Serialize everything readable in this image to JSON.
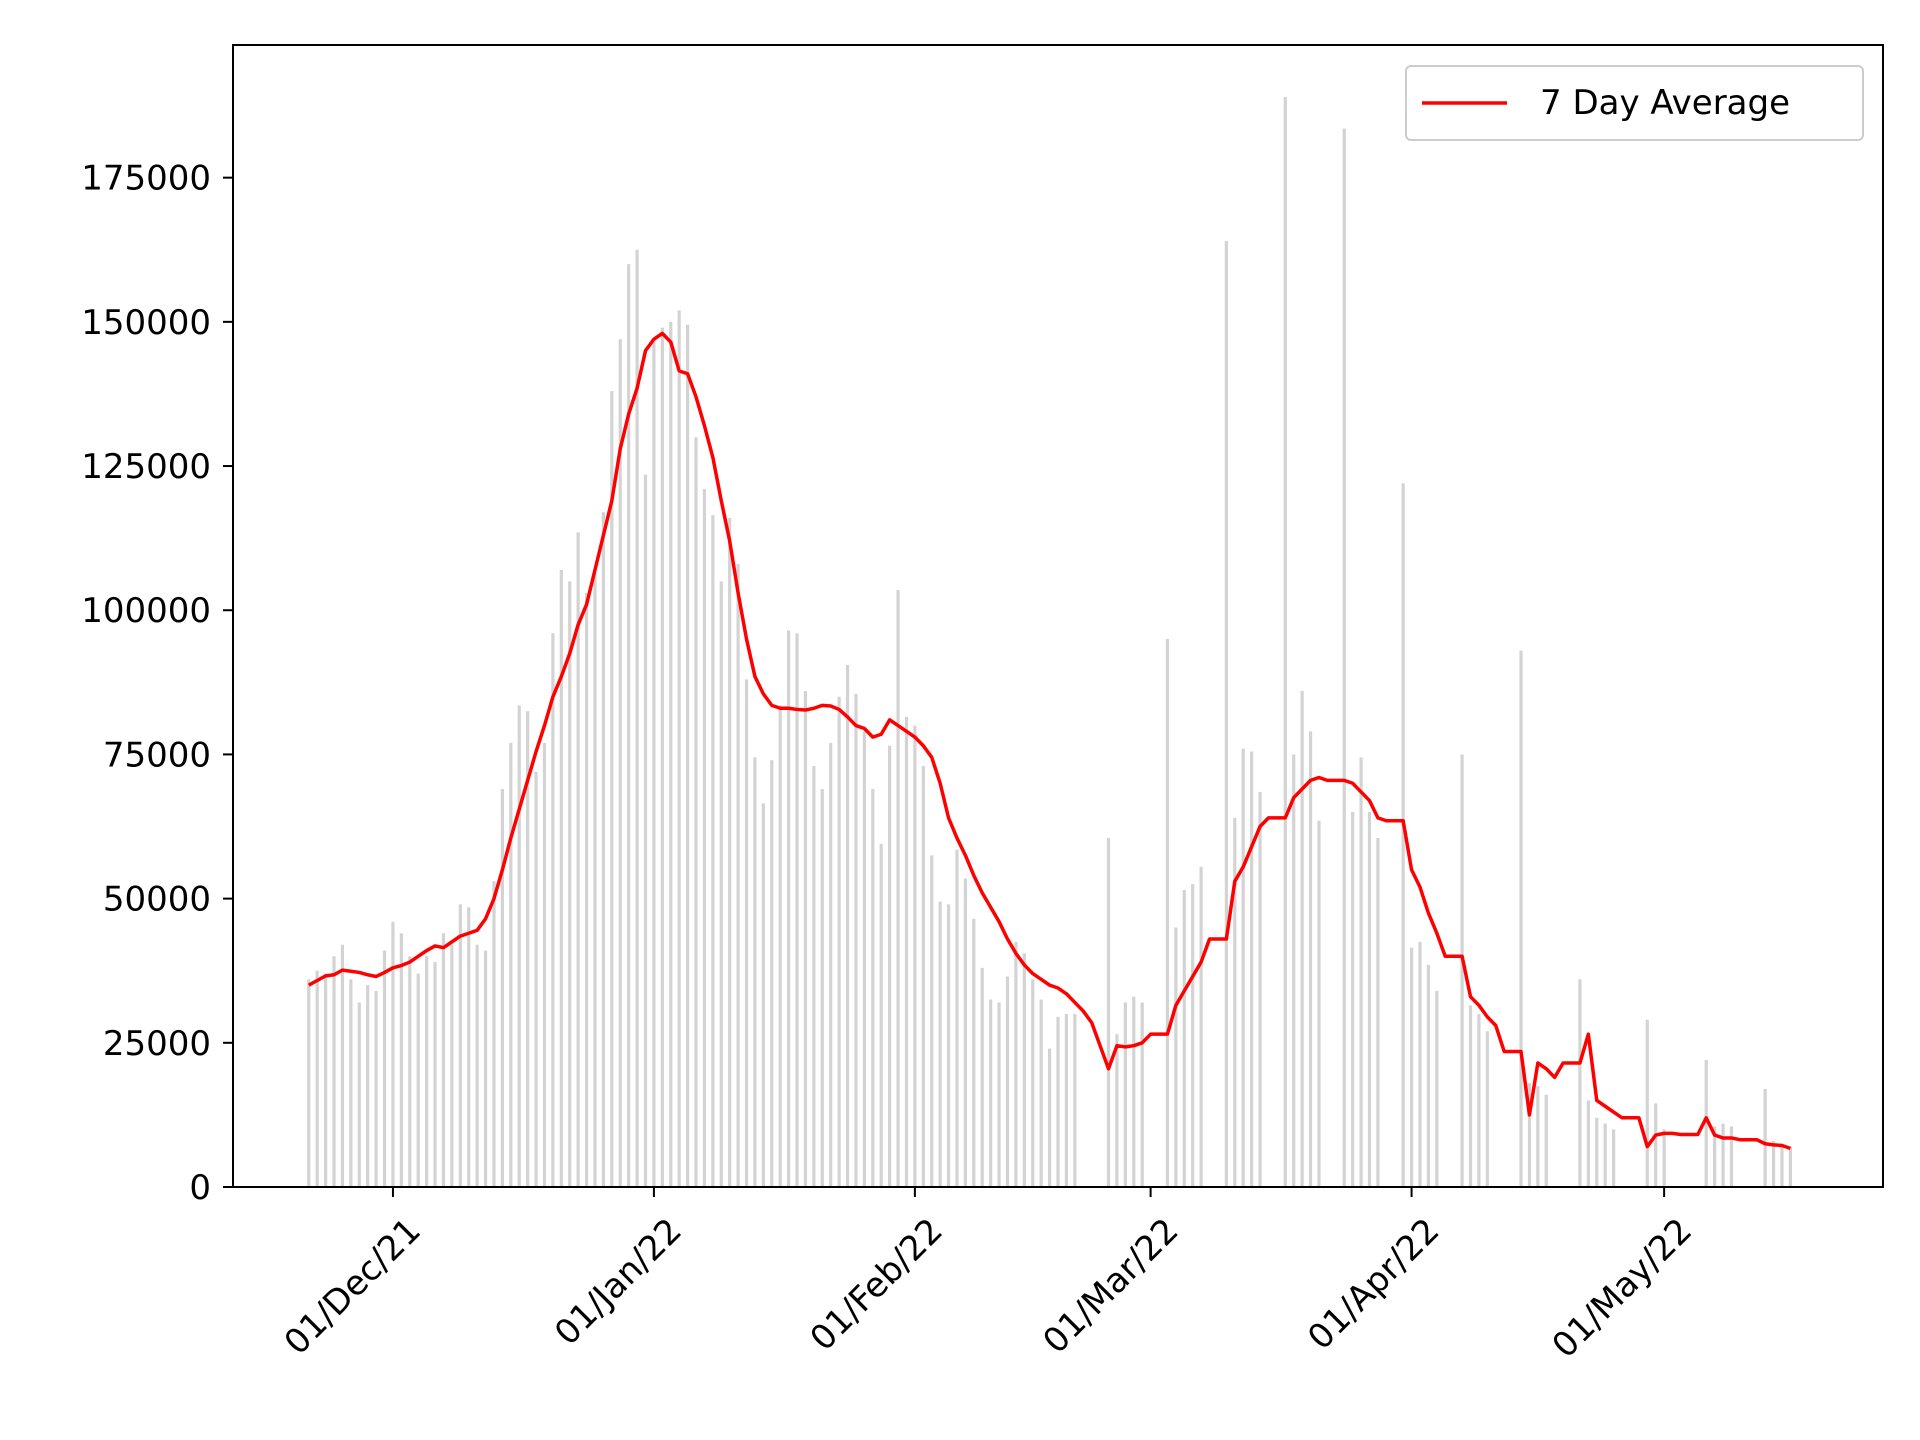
{
  "chart_data": {
    "type": "bar",
    "title": "",
    "xlabel": "",
    "ylabel": "",
    "x_start": "2021-11-21",
    "x_ticks": [
      "01/Dec/21",
      "01/Jan/22",
      "01/Feb/22",
      "01/Mar/22",
      "01/Apr/22",
      "01/May/22"
    ],
    "x_tick_dates": [
      "2021-12-01",
      "2022-01-01",
      "2022-02-01",
      "2022-03-01",
      "2022-04-01",
      "2022-05-01"
    ],
    "xlim": [
      "2021-11-12",
      "2022-05-27"
    ],
    "ylim": [
      0,
      198000
    ],
    "y_ticks": [
      0,
      25000,
      50000,
      75000,
      100000,
      125000,
      150000,
      175000
    ],
    "y_tick_labels": [
      "0",
      "25000",
      "50000",
      "75000",
      "100000",
      "125000",
      "150000",
      "175000"
    ],
    "grid": false,
    "legend_position": "top-right",
    "series": [
      {
        "name": "",
        "kind": "bar",
        "color": "#d3d3d3",
        "values": [
          36000,
          37500,
          37000,
          40000,
          42000,
          36000,
          32000,
          35000,
          34000,
          41000,
          46000,
          44000,
          40000,
          37000,
          40000,
          39000,
          44000,
          42000,
          49000,
          48500,
          42000,
          41000,
          53000,
          69000,
          77000,
          83500,
          82500,
          72000,
          77000,
          96000,
          107000,
          105000,
          113500,
          103000,
          106500,
          117000,
          138000,
          147000,
          160000,
          162500,
          123500,
          146500,
          149000,
          150000,
          152000,
          149500,
          130000,
          121000,
          116500,
          105000,
          116000,
          108000,
          88000,
          74500,
          66500,
          74000,
          83500,
          96500,
          96000,
          86000,
          73000,
          69000,
          77000,
          85000,
          90500,
          85500,
          79000,
          69000,
          59500,
          76500,
          103500,
          81500,
          80000,
          73000,
          57500,
          49500,
          49000,
          58500,
          53500,
          46500,
          38000,
          32500,
          32000,
          36500,
          42500,
          40500,
          36000,
          32500,
          24000,
          29500,
          30000,
          30000,
          0,
          0,
          0,
          60500,
          26500,
          32000,
          33000,
          32000,
          0,
          0,
          95000,
          45000,
          51500,
          52500,
          55500,
          0,
          0,
          164000,
          64000,
          76000,
          75500,
          68500,
          0,
          0,
          189000,
          75000,
          86000,
          79000,
          63500,
          0,
          0,
          183500,
          65000,
          74500,
          65000,
          60500,
          0,
          0,
          122000,
          41500,
          42500,
          38500,
          34000,
          0,
          0,
          75000,
          31500,
          30000,
          27000,
          0,
          0,
          0,
          93000,
          18000,
          17500,
          16000,
          0,
          0,
          0,
          36000,
          15000,
          12000,
          11000,
          10000,
          0,
          0,
          0,
          29000,
          14500,
          10000,
          0,
          0,
          0,
          0,
          22000,
          10500,
          11000,
          10500,
          0,
          0,
          0,
          17000,
          8000,
          7500,
          7000
        ],
        "note_zero": "days with no reported value are shown as 0"
      },
      {
        "name": "7 Day Average",
        "kind": "line",
        "color": "#ff0000",
        "values": [
          35000,
          35800,
          36600,
          36800,
          37600,
          37400,
          37200,
          36800,
          36500,
          37200,
          38000,
          38400,
          39000,
          40000,
          41000,
          41800,
          41500,
          42500,
          43500,
          44000,
          44500,
          46500,
          50000,
          55000,
          60500,
          65500,
          70500,
          75500,
          80000,
          85000,
          88500,
          92500,
          97500,
          101000,
          107000,
          113000,
          119000,
          128000,
          134000,
          138500,
          145000,
          147000,
          148000,
          146500,
          141500,
          141000,
          137000,
          132000,
          126500,
          119000,
          112000,
          103000,
          95000,
          88500,
          85500,
          83500,
          83000,
          83000,
          82800,
          82700,
          83000,
          83500,
          83400,
          82800,
          81500,
          80000,
          79500,
          78000,
          78500,
          81000,
          80000,
          79000,
          78000,
          76500,
          74500,
          70000,
          64000,
          60500,
          57500,
          54000,
          51000,
          48500,
          46000,
          43000,
          40500,
          38500,
          37000,
          36000,
          35000,
          34500,
          33500,
          32000,
          30500,
          28500,
          24500,
          20500,
          24500,
          24300,
          24500,
          25000,
          26500,
          26500,
          26500,
          31500,
          34000,
          36500,
          39000,
          43000,
          43000,
          43000,
          53000,
          55500,
          59000,
          62500,
          64000,
          64000,
          64000,
          67500,
          69000,
          70500,
          71000,
          70500,
          70500,
          70500,
          70000,
          68500,
          67000,
          64000,
          63500,
          63500,
          63500,
          55000,
          52000,
          47500,
          44000,
          40000,
          40000,
          40000,
          33000,
          31500,
          29500,
          28000,
          23500,
          23500,
          23500,
          12500,
          21500,
          20500,
          19000,
          21500,
          21500,
          21500,
          26500,
          15000,
          14000,
          13000,
          12000,
          12000,
          12000,
          7000,
          9000,
          9300,
          9300,
          9100,
          9100,
          9100,
          12000,
          9000,
          8500,
          8500,
          8200,
          8200,
          8200,
          7500,
          7300,
          7200,
          6700
        ]
      }
    ]
  },
  "legend": {
    "label": "7 Day Average"
  }
}
